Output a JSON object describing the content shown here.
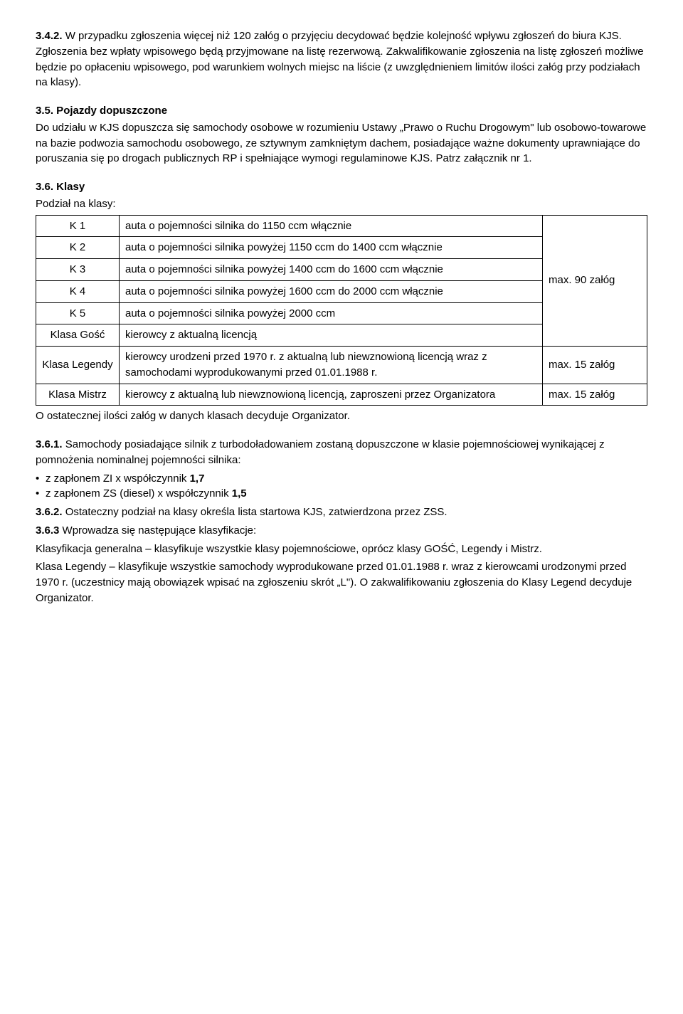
{
  "s342": {
    "num": "3.4.2.",
    "text": " W przypadku zgłoszenia więcej niż 120 załóg o przyjęciu decydować będzie kolejność wpływu zgłoszeń do biura KJS. Zgłoszenia bez wpłaty wpisowego będą przyjmowane na listę rezerwową. Zakwalifikowanie zgłoszenia na listę zgłoszeń możliwe będzie po opłaceniu wpisowego, pod warunkiem wolnych miejsc na liście (z uwzględnieniem limitów ilości załóg przy podziałach na klasy)."
  },
  "s35": {
    "num": "3.5. Pojazdy dopuszczone",
    "text": "Do udziału w KJS dopuszcza się samochody osobowe w rozumieniu Ustawy „Prawo o Ruchu Drogowym\" lub osobowo-towarowe na bazie podwozia samochodu osobowego, ze sztywnym zamkniętym dachem, posiadające ważne dokumenty uprawniające do poruszania się po drogach publicznych RP i spełniające wymogi regulaminowe KJS. Patrz załącznik nr 1."
  },
  "s36": {
    "num": "3.6. Klasy",
    "sub": "Podział na klasy:",
    "table": {
      "rows": [
        {
          "class": "K 1",
          "desc": "auta o pojemności silnika do 1150 ccm włącznie"
        },
        {
          "class": "K 2",
          "desc": "auta o pojemności silnika powyżej 1150 ccm do 1400 ccm włącznie"
        },
        {
          "class": "K 3",
          "desc": "auta o pojemności silnika powyżej 1400 ccm do 1600 ccm włącznie"
        },
        {
          "class": "K 4",
          "desc": "auta o pojemności silnika powyżej 1600 ccm do 2000 ccm włącznie"
        },
        {
          "class": "K 5",
          "desc": "auta o pojemności silnika powyżej 2000 ccm"
        },
        {
          "class": "Klasa Gość",
          "desc": "kierowcy z aktualną licencją"
        }
      ],
      "max1": "max. 90 załóg",
      "legendy_class": "Klasa Legendy",
      "legendy_desc": "kierowcy urodzeni przed 1970 r. z aktualną lub niewznowioną  licencją  wraz z samochodami wyprodukowanymi przed 01.01.1988 r.",
      "legendy_max": "max. 15 załóg",
      "mistrz_class": "Klasa Mistrz",
      "mistrz_desc": "kierowcy z aktualną lub niewznowioną licencją, zaproszeni przez Organizatora",
      "mistrz_max": "max. 15 załóg"
    },
    "after_table": "O ostatecznej ilości załóg w danych klasach decyduje Organizator."
  },
  "s361": {
    "num": "3.6.1.",
    "text": " Samochody posiadające silnik z turbodoładowaniem zostaną dopuszczone w klasie pojemnościowej wynikającej z pomnożenia nominalnej pojemności silnika:",
    "bullets": [
      {
        "pre": "z zapłonem ZI x współczynnik ",
        "b": "1,7"
      },
      {
        "pre": "z zapłonem ZS (diesel) x współczynnik ",
        "b": "1,5"
      }
    ]
  },
  "s362": {
    "num": "3.6.2.",
    "text": " Ostateczny podział na klasy określa lista startowa KJS, zatwierdzona przez ZSS."
  },
  "s363": {
    "num": "3.6.3",
    "text": " Wprowadza się następujące klasyfikacje:",
    "line1": "Klasyfikacja generalna – klasyfikuje wszystkie klasy pojemnościowe, oprócz klasy GOŚĆ, Legendy i Mistrz.",
    "line2": "Klasa Legendy – klasyfikuje wszystkie samochody wyprodukowane przed 01.01.1988 r. wraz z kierowcami urodzonymi przed 1970 r. (uczestnicy mają obowiązek wpisać na zgłoszeniu skrót „L\"). O zakwalifikowaniu zgłoszenia do Klasy Legend decyduje Organizator."
  }
}
